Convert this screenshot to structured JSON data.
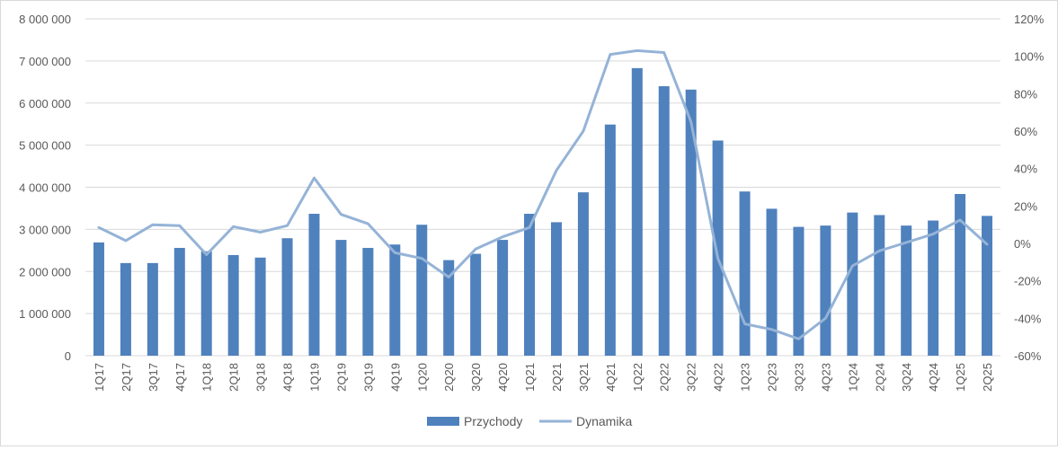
{
  "chart_data": {
    "type": "bar",
    "categories": [
      "1Q17",
      "2Q17",
      "3Q17",
      "4Q17",
      "1Q18",
      "2Q18",
      "3Q18",
      "4Q18",
      "1Q19",
      "2Q19",
      "3Q19",
      "4Q19",
      "1Q20",
      "2Q20",
      "3Q20",
      "4Q20",
      "1Q21",
      "2Q21",
      "3Q21",
      "4Q21",
      "1Q22",
      "2Q22",
      "3Q22",
      "4Q22",
      "1Q23",
      "2Q23",
      "3Q23",
      "4Q23",
      "1Q24",
      "2Q24",
      "3Q24",
      "4Q24",
      "1Q25",
      "2Q25"
    ],
    "series": [
      {
        "name": "Przychody",
        "type": "bar",
        "axis": "left",
        "color": "#4f81bd",
        "values": [
          2690000,
          2200000,
          2200000,
          2560000,
          2480000,
          2390000,
          2330000,
          2790000,
          3370000,
          2750000,
          2560000,
          2640000,
          3110000,
          2270000,
          2420000,
          2750000,
          3370000,
          3170000,
          3880000,
          5490000,
          6830000,
          6400000,
          6320000,
          5110000,
          3900000,
          3490000,
          3060000,
          3090000,
          3400000,
          3340000,
          3090000,
          3210000,
          3840000,
          3320000
        ]
      },
      {
        "name": "Dynamika",
        "type": "line",
        "axis": "right",
        "color": "#95b3d7",
        "values": [
          8.5,
          1.5,
          10,
          9.5,
          -6,
          9,
          6,
          9.5,
          35,
          15.5,
          10.5,
          -5,
          -8,
          -18,
          -3,
          3.5,
          8.5,
          39,
          60,
          101,
          103,
          102,
          65,
          -8,
          -43,
          -46,
          -51,
          -40,
          -12,
          -4,
          0.5,
          5,
          12.5,
          -0.5
        ]
      }
    ],
    "yLeft": {
      "ylim": [
        0,
        8000000
      ],
      "ticks": [
        "0",
        "1 000 000",
        "2 000 000",
        "3 000 000",
        "4 000 000",
        "5 000 000",
        "6 000 000",
        "7 000 000",
        "8 000 000"
      ]
    },
    "yRight": {
      "ylim": [
        -60,
        120
      ],
      "ticks": [
        "-60%",
        "-40%",
        "-20%",
        "0%",
        "20%",
        "40%",
        "60%",
        "80%",
        "100%",
        "120%"
      ]
    },
    "grid": true,
    "legend": "bottom"
  }
}
